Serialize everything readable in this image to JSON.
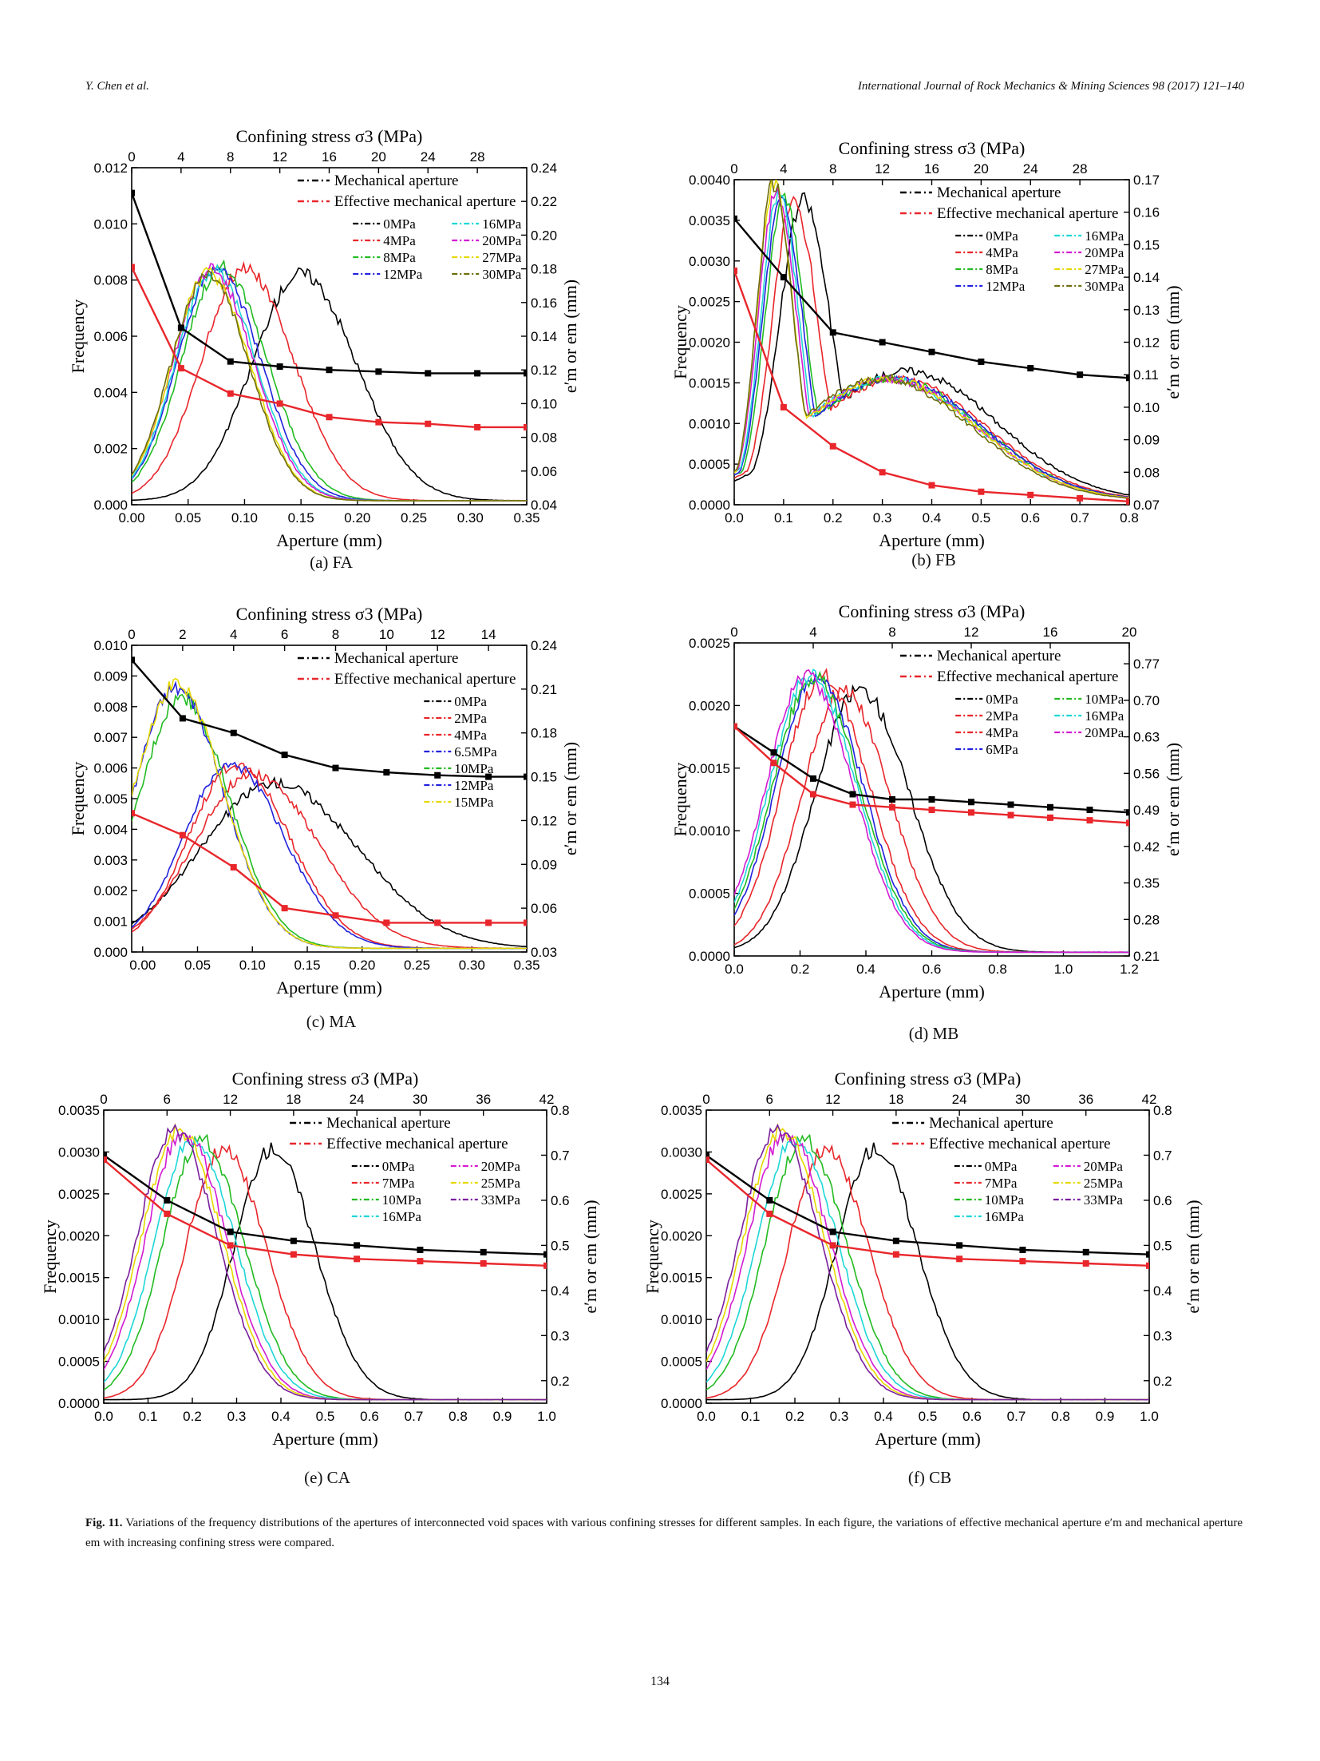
{
  "header": {
    "left": "Y. Chen et al.",
    "right": "International Journal of Rock Mechanics & Mining Sciences 98 (2017) 121–140"
  },
  "figure": {
    "caption_label": "Fig. 11.",
    "caption_text": "Variations of the frequency distributions of the apertures of interconnected void spaces with various confining stresses for different samples. In each figure, the variations of effective mechanical aperture e′m and mechanical aperture em with increasing confining stress were compared."
  },
  "page_number": "134",
  "colors": {
    "0MPa": "#000000",
    "2MPa": "#e8262b",
    "4MPa": "#e8262b",
    "6MPa": "#2222dd",
    "6.5MPa": "#2222dd",
    "7MPa": "#e8262b",
    "8MPa": "#22bb22",
    "10MPa": "#22bb22",
    "12MPa": "#2222dd",
    "15MPa": "#e6d800",
    "16MPa": "#1fd6d6",
    "20MPa": "#d21bd2",
    "25MPa": "#e6d800",
    "27MPa": "#e6d800",
    "30MPa": "#6e6e0e",
    "33MPa": "#7a1f9e",
    "mechanical": "#000000",
    "effective": "#e8262b"
  },
  "chart_data": [
    {
      "id": "FA",
      "type": "line",
      "caption": "(a) FA",
      "xlabel": "Aperture (mm)",
      "ylabel": "Frequency",
      "x2label": "Confining stress σ3 (MPa)",
      "y2label": "e′m or em (mm)",
      "xlim": [
        0,
        0.35
      ],
      "ylim": [
        0,
        0.012
      ],
      "x2lim": [
        0,
        32
      ],
      "y2lim": [
        0.04,
        0.24
      ],
      "xticks": [
        "0.00",
        "0.05",
        "0.10",
        "0.15",
        "0.20",
        "0.25",
        "0.30",
        "0.35"
      ],
      "yticks": [
        "0.000",
        "0.002",
        "0.004",
        "0.006",
        "0.008",
        "0.010",
        "0.012"
      ],
      "x2ticks": [
        "0",
        "4",
        "8",
        "12",
        "16",
        "20",
        "24",
        "28"
      ],
      "y2ticks": [
        "0.04",
        "0.06",
        "0.08",
        "0.10",
        "0.12",
        "0.14",
        "0.16",
        "0.18",
        "0.20",
        "0.22",
        "0.24"
      ],
      "legend_cols": 2,
      "legend_labels": {
        "mechanical": "Mechanical aperture",
        "effective": "Effective mechanical aperture",
        "series": [
          "0MPa",
          "4MPa",
          "8MPa",
          "12MPa",
          "16MPa",
          "20MPa",
          "27MPa",
          "30MPa"
        ]
      },
      "aperture_line": {
        "stress": [
          0,
          4,
          8,
          12,
          16,
          20,
          24,
          28,
          32
        ],
        "mechanical": [
          0.225,
          0.145,
          0.125,
          0.122,
          0.12,
          0.119,
          0.118,
          0.118,
          0.118
        ],
        "effective": [
          0.181,
          0.121,
          0.106,
          0.1,
          0.092,
          0.089,
          0.088,
          0.086,
          0.086
        ]
      },
      "series": [
        {
          "name": "0MPa",
          "peak_x": 0.15,
          "peak_y": 0.0081,
          "spread": 0.045
        },
        {
          "name": "4MPa",
          "peak_x": 0.1,
          "peak_y": 0.0083,
          "spread": 0.04
        },
        {
          "name": "8MPa",
          "peak_x": 0.08,
          "peak_y": 0.0083,
          "spread": 0.037
        },
        {
          "name": "12MPa",
          "peak_x": 0.075,
          "peak_y": 0.0083,
          "spread": 0.036
        },
        {
          "name": "16MPa",
          "peak_x": 0.072,
          "peak_y": 0.0082,
          "spread": 0.035
        },
        {
          "name": "20MPa",
          "peak_x": 0.07,
          "peak_y": 0.0082,
          "spread": 0.035
        },
        {
          "name": "27MPa",
          "peak_x": 0.068,
          "peak_y": 0.0081,
          "spread": 0.034
        },
        {
          "name": "30MPa",
          "peak_x": 0.067,
          "peak_y": 0.008,
          "spread": 0.034
        }
      ]
    },
    {
      "id": "FB",
      "type": "line",
      "caption": "(b) FB",
      "xlabel": "Aperture (mm)",
      "ylabel": "Frequency",
      "x2label": "Confining stress σ3 (MPa)",
      "y2label": "e′m or em (mm)",
      "xlim": [
        0,
        0.8
      ],
      "ylim": [
        0,
        0.004
      ],
      "x2lim": [
        0,
        32
      ],
      "y2lim": [
        0.07,
        0.17
      ],
      "xticks": [
        "0.0",
        "0.1",
        "0.2",
        "0.3",
        "0.4",
        "0.5",
        "0.6",
        "0.7",
        "0.8"
      ],
      "yticks": [
        "0.0000",
        "0.0005",
        "0.0010",
        "0.0015",
        "0.0020",
        "0.0025",
        "0.0030",
        "0.0035",
        "0.0040"
      ],
      "x2ticks": [
        "0",
        "4",
        "8",
        "12",
        "16",
        "20",
        "24",
        "28"
      ],
      "y2ticks": [
        "0.07",
        "0.08",
        "0.09",
        "0.10",
        "0.11",
        "0.12",
        "0.13",
        "0.14",
        "0.15",
        "0.16",
        "0.17"
      ],
      "legend_cols": 2,
      "legend_labels": {
        "mechanical": "Mechanical aperture",
        "effective": "Effective mechanical aperture",
        "series": [
          "0MPa",
          "4MPa",
          "8MPa",
          "12MPa",
          "16MPa",
          "20MPa",
          "27MPa",
          "30MPa"
        ]
      },
      "aperture_line": {
        "stress": [
          0,
          4,
          8,
          12,
          16,
          20,
          24,
          28,
          32
        ],
        "mechanical": [
          0.158,
          0.14,
          0.123,
          0.12,
          0.117,
          0.114,
          0.112,
          0.11,
          0.109
        ],
        "effective": [
          0.142,
          0.1,
          0.088,
          0.08,
          0.076,
          0.074,
          0.073,
          0.072,
          0.071
        ]
      },
      "series": [
        {
          "name": "0MPa",
          "peak_x": 0.14,
          "peak_y": 0.0037,
          "spread": 0.05,
          "shoulder_x": 0.35,
          "shoulder_y": 0.0016
        },
        {
          "name": "4MPa",
          "peak_x": 0.12,
          "peak_y": 0.0037,
          "spread": 0.045,
          "shoulder_x": 0.33,
          "shoulder_y": 0.0015
        },
        {
          "name": "8MPa",
          "peak_x": 0.1,
          "peak_y": 0.0037,
          "spread": 0.04,
          "shoulder_x": 0.32,
          "shoulder_y": 0.0015
        },
        {
          "name": "12MPa",
          "peak_x": 0.095,
          "peak_y": 0.0037,
          "spread": 0.04,
          "shoulder_x": 0.32,
          "shoulder_y": 0.0015
        },
        {
          "name": "16MPa",
          "peak_x": 0.09,
          "peak_y": 0.0038,
          "spread": 0.038,
          "shoulder_x": 0.31,
          "shoulder_y": 0.0015
        },
        {
          "name": "20MPa",
          "peak_x": 0.085,
          "peak_y": 0.0038,
          "spread": 0.038,
          "shoulder_x": 0.31,
          "shoulder_y": 0.0015
        },
        {
          "name": "27MPa",
          "peak_x": 0.08,
          "peak_y": 0.0039,
          "spread": 0.036,
          "shoulder_x": 0.31,
          "shoulder_y": 0.0015
        },
        {
          "name": "30MPa",
          "peak_x": 0.08,
          "peak_y": 0.0039,
          "spread": 0.036,
          "shoulder_x": 0.3,
          "shoulder_y": 0.0015
        }
      ]
    },
    {
      "id": "MA",
      "type": "line",
      "caption": "(c) MA",
      "xlabel": "Aperture (mm)",
      "ylabel": "Frequency",
      "x2label": "Confining stress σ3 (MPa)",
      "y2label": "e′m or em (mm)",
      "xlim": [
        -0.01,
        0.35
      ],
      "ylim": [
        0,
        0.01
      ],
      "x2lim": [
        0,
        15.5
      ],
      "y2lim": [
        0.03,
        0.24
      ],
      "xticks": [
        "0.00",
        "0.05",
        "0.10",
        "0.15",
        "0.20",
        "0.25",
        "0.30",
        "0.35"
      ],
      "yticks": [
        "0.000",
        "0.001",
        "0.002",
        "0.003",
        "0.004",
        "0.005",
        "0.006",
        "0.007",
        "0.008",
        "0.009",
        "0.010"
      ],
      "x2ticks": [
        "0",
        "2",
        "4",
        "6",
        "8",
        "10",
        "12",
        "14"
      ],
      "y2ticks": [
        "0.03",
        "0.06",
        "0.09",
        "0.12",
        "0.15",
        "0.18",
        "0.21",
        "0.24"
      ],
      "legend_cols": 1,
      "legend_labels": {
        "mechanical": "Mechanical aperture",
        "effective": "Effective mechanical aperture",
        "series": [
          "0MPa",
          "2MPa",
          "4MPa",
          "6.5MPa",
          "10MPa",
          "12MPa",
          "15MPa"
        ]
      },
      "aperture_line": {
        "stress": [
          0,
          2,
          4,
          6,
          8,
          10,
          12,
          14,
          15.5
        ],
        "mechanical": [
          0.23,
          0.19,
          0.18,
          0.165,
          0.156,
          0.153,
          0.151,
          0.15,
          0.15
        ],
        "effective": [
          0.125,
          0.11,
          0.088,
          0.06,
          0.055,
          0.05,
          0.05,
          0.05,
          0.05
        ]
      },
      "series": [
        {
          "name": "0MPa",
          "peak_x": 0.12,
          "peak_y": 0.0054,
          "spread": 0.07
        },
        {
          "name": "2MPa",
          "peak_x": 0.1,
          "peak_y": 0.0057,
          "spread": 0.055
        },
        {
          "name": "4MPa",
          "peak_x": 0.085,
          "peak_y": 0.006,
          "spread": 0.045
        },
        {
          "name": "6.5MPa",
          "peak_x": 0.08,
          "peak_y": 0.006,
          "spread": 0.045
        },
        {
          "name": "10MPa",
          "peak_x": 0.035,
          "peak_y": 0.0082,
          "spread": 0.04
        },
        {
          "name": "12MPa",
          "peak_x": 0.03,
          "peak_y": 0.0085,
          "spread": 0.04
        },
        {
          "name": "15MPa",
          "peak_x": 0.03,
          "peak_y": 0.0086,
          "spread": 0.04
        }
      ]
    },
    {
      "id": "MB",
      "type": "line",
      "caption": "(d) MB",
      "xlabel": "Aperture (mm)",
      "ylabel": "Frequency",
      "x2label": "Confining stress σ3 (MPa)",
      "y2label": "e′m or em (mm)",
      "xlim": [
        0,
        1.2
      ],
      "ylim": [
        0,
        0.0025
      ],
      "x2lim": [
        0,
        20
      ],
      "y2lim": [
        0.21,
        0.81
      ],
      "xticks": [
        "0.0",
        "0.2",
        "0.4",
        "0.6",
        "0.8",
        "1.0",
        "1.2"
      ],
      "yticks": [
        "0.0000",
        "0.0005",
        "0.0010",
        "0.0015",
        "0.0020",
        "0.0025"
      ],
      "x2ticks": [
        "0",
        "4",
        "8",
        "12",
        "16",
        "20"
      ],
      "y2ticks": [
        "0.21",
        "0.28",
        "0.35",
        "0.42",
        "0.49",
        "0.56",
        "0.63",
        "0.70",
        "0.77"
      ],
      "legend_cols": 2,
      "legend_labels": {
        "mechanical": "Mechanical aperture",
        "effective": "Effective mechanical aperture",
        "series": [
          "0MPa",
          "2MPa",
          "4MPa",
          "6MPa",
          "10MPa",
          "16MPa",
          "20MPa"
        ]
      },
      "aperture_line": {
        "stress": [
          0,
          2,
          4,
          6,
          8,
          10,
          12,
          14,
          16,
          18,
          20
        ],
        "mechanical": [
          0.65,
          0.6,
          0.55,
          0.52,
          0.51,
          0.51,
          0.505,
          0.5,
          0.495,
          0.49,
          0.485
        ],
        "effective": [
          0.65,
          0.58,
          0.52,
          0.5,
          0.495,
          0.49,
          0.485,
          0.48,
          0.475,
          0.47,
          0.465
        ]
      },
      "series": [
        {
          "name": "0MPa",
          "peak_x": 0.38,
          "peak_y": 0.0021,
          "spread": 0.14
        },
        {
          "name": "2MPa",
          "peak_x": 0.33,
          "peak_y": 0.0021,
          "spread": 0.13
        },
        {
          "name": "4MPa",
          "peak_x": 0.27,
          "peak_y": 0.0022,
          "spread": 0.13
        },
        {
          "name": "6MPa",
          "peak_x": 0.25,
          "peak_y": 0.0022,
          "spread": 0.13
        },
        {
          "name": "10MPa",
          "peak_x": 0.24,
          "peak_y": 0.0022,
          "spread": 0.13
        },
        {
          "name": "16MPa",
          "peak_x": 0.23,
          "peak_y": 0.0022,
          "spread": 0.13
        },
        {
          "name": "20MPa",
          "peak_x": 0.22,
          "peak_y": 0.0022,
          "spread": 0.13
        }
      ]
    },
    {
      "id": "CA",
      "type": "line",
      "caption": "(e) CA",
      "xlabel": "Aperture (mm)",
      "ylabel": "Frequency",
      "x2label": "Confining stress σ3 (MPa)",
      "y2label": "e′m or em (mm)",
      "xlim": [
        0,
        1.0
      ],
      "ylim": [
        0,
        0.0035
      ],
      "x2lim": [
        0,
        42
      ],
      "y2lim": [
        0.15,
        0.8
      ],
      "xticks": [
        "0.0",
        "0.1",
        "0.2",
        "0.3",
        "0.4",
        "0.5",
        "0.6",
        "0.7",
        "0.8",
        "0.9",
        "1.0"
      ],
      "yticks": [
        "0.0000",
        "0.0005",
        "0.0010",
        "0.0015",
        "0.0020",
        "0.0025",
        "0.0030",
        "0.0035"
      ],
      "x2ticks": [
        "0",
        "6",
        "12",
        "18",
        "24",
        "30",
        "36",
        "42"
      ],
      "y2ticks": [
        "0.2",
        "0.3",
        "0.4",
        "0.5",
        "0.6",
        "0.7",
        "0.8"
      ],
      "legend_cols": 2,
      "legend_labels": {
        "mechanical": "Mechanical aperture",
        "effective": "Effective mechanical aperture",
        "series": [
          "0MPa",
          "7MPa",
          "10MPa",
          "16MPa",
          "20MPa",
          "25MPa",
          "33MPa"
        ]
      },
      "aperture_line": {
        "stress": [
          0,
          6,
          12,
          18,
          24,
          30,
          36,
          42
        ],
        "mechanical": [
          0.7,
          0.6,
          0.53,
          0.51,
          0.5,
          0.49,
          0.485,
          0.48
        ],
        "effective": [
          0.69,
          0.57,
          0.5,
          0.48,
          0.47,
          0.465,
          0.46,
          0.455
        ]
      },
      "series": [
        {
          "name": "0MPa",
          "peak_x": 0.38,
          "peak_y": 0.003,
          "spread": 0.09
        },
        {
          "name": "7MPa",
          "peak_x": 0.27,
          "peak_y": 0.003,
          "spread": 0.09
        },
        {
          "name": "10MPa",
          "peak_x": 0.22,
          "peak_y": 0.0031,
          "spread": 0.09
        },
        {
          "name": "16MPa",
          "peak_x": 0.2,
          "peak_y": 0.0031,
          "spread": 0.09
        },
        {
          "name": "20MPa",
          "peak_x": 0.18,
          "peak_y": 0.0032,
          "spread": 0.09
        },
        {
          "name": "25MPa",
          "peak_x": 0.17,
          "peak_y": 0.0032,
          "spread": 0.09
        },
        {
          "name": "33MPa",
          "peak_x": 0.16,
          "peak_y": 0.0032,
          "spread": 0.09
        }
      ]
    },
    {
      "id": "CB",
      "type": "line",
      "caption": "(f)  CB",
      "xlabel": "Aperture (mm)",
      "ylabel": "Frequency",
      "x2label": "Confining stress σ3 (MPa)",
      "y2label": "e′m or em (mm)",
      "xlim": [
        0,
        1.0
      ],
      "ylim": [
        0,
        0.0035
      ],
      "x2lim": [
        0,
        42
      ],
      "y2lim": [
        0.15,
        0.8
      ],
      "xticks": [
        "0.0",
        "0.1",
        "0.2",
        "0.3",
        "0.4",
        "0.5",
        "0.6",
        "0.7",
        "0.8",
        "0.9",
        "1.0"
      ],
      "yticks": [
        "0.0000",
        "0.0005",
        "0.0010",
        "0.0015",
        "0.0020",
        "0.0025",
        "0.0030",
        "0.0035"
      ],
      "x2ticks": [
        "0",
        "6",
        "12",
        "18",
        "24",
        "30",
        "36",
        "42"
      ],
      "y2ticks": [
        "0.2",
        "0.3",
        "0.4",
        "0.5",
        "0.6",
        "0.7",
        "0.8"
      ],
      "legend_cols": 2,
      "legend_labels": {
        "mechanical": "Mechanical aperture",
        "effective": "Effective mechanical aperture",
        "series": [
          "0MPa",
          "7MPa",
          "10MPa",
          "16MPa",
          "20MPa",
          "25MPa",
          "33MPa"
        ]
      },
      "aperture_line": {
        "stress": [
          0,
          6,
          12,
          18,
          24,
          30,
          36,
          42
        ],
        "mechanical": [
          0.7,
          0.6,
          0.53,
          0.51,
          0.5,
          0.49,
          0.485,
          0.48
        ],
        "effective": [
          0.69,
          0.57,
          0.5,
          0.48,
          0.47,
          0.465,
          0.46,
          0.455
        ]
      },
      "series": [
        {
          "name": "0MPa",
          "peak_x": 0.38,
          "peak_y": 0.003,
          "spread": 0.09
        },
        {
          "name": "7MPa",
          "peak_x": 0.27,
          "peak_y": 0.003,
          "spread": 0.09
        },
        {
          "name": "10MPa",
          "peak_x": 0.22,
          "peak_y": 0.0031,
          "spread": 0.09
        },
        {
          "name": "16MPa",
          "peak_x": 0.2,
          "peak_y": 0.0031,
          "spread": 0.09
        },
        {
          "name": "20MPa",
          "peak_x": 0.18,
          "peak_y": 0.0032,
          "spread": 0.09
        },
        {
          "name": "25MPa",
          "peak_x": 0.17,
          "peak_y": 0.0032,
          "spread": 0.09
        },
        {
          "name": "33MPa",
          "peak_x": 0.16,
          "peak_y": 0.0032,
          "spread": 0.09
        }
      ]
    }
  ]
}
